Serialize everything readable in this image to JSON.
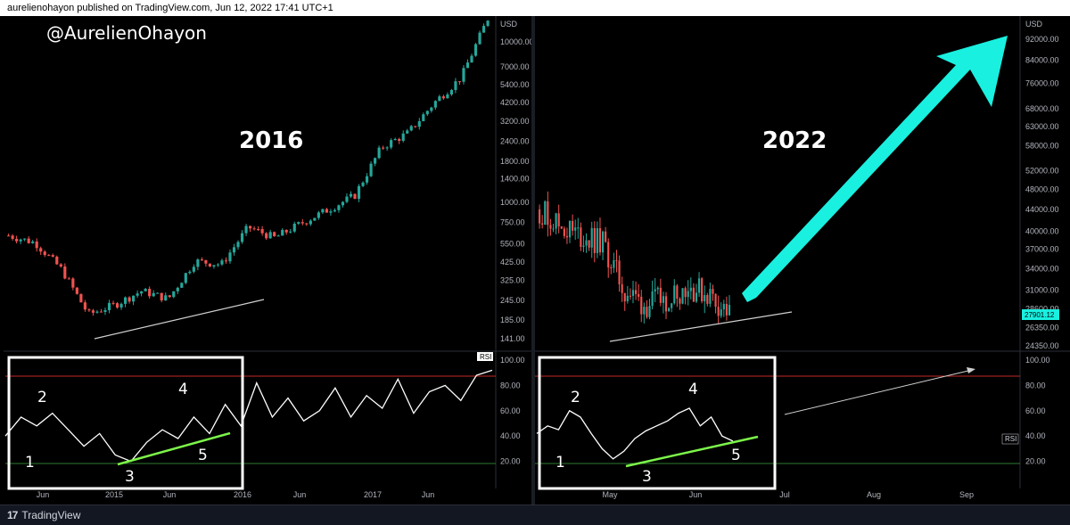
{
  "header": {
    "published_text": "aurelienohayon published on TradingView.com, Jun 12, 2022 17:41 UTC+1"
  },
  "footer": {
    "brand": "TradingView"
  },
  "annotations": {
    "handle": "@AurelienOhayon",
    "left_year": "2016",
    "right_year": "2022",
    "wave_labels": [
      "1",
      "2",
      "3",
      "4",
      "5"
    ]
  },
  "colors": {
    "up_candle": "#26a69a",
    "down_candle": "#ef5350",
    "rsi_line": "#ffffff",
    "overbought_line": "#d32f2f",
    "oversold_line": "#2e7d32",
    "trendline_price": "#d0d0d0",
    "trendline_rsi": "#7cf54a",
    "arrow": "#19f0e0",
    "box": "#ffffff",
    "price_tag": "#19f0e0"
  },
  "chart_data": [
    {
      "type": "candlestick",
      "title": "2016",
      "ylabel": "USD",
      "scale": "log",
      "price_ticks": [
        141,
        185,
        245,
        325,
        425,
        550,
        750,
        1000,
        1400,
        1800,
        2400,
        3200,
        4200,
        5400,
        7000,
        10000
      ],
      "price_tick_labels": [
        "141.00",
        "185.00",
        "245.00",
        "325.00",
        "425.00",
        "550.00",
        "750.00",
        "1000.00",
        "1400.00",
        "1800.00",
        "2400.00",
        "3200.00",
        "4200.00",
        "5400.00",
        "7000.00",
        "10000.00"
      ],
      "time_labels": [
        "Jun",
        "2015",
        "Jun",
        "2016",
        "Jun",
        "2017",
        "Jun"
      ],
      "close_path": {
        "periods": [
          "2014-05",
          "2014-08",
          "2014-11",
          "2015-01",
          "2015-04",
          "2015-07",
          "2015-10",
          "2015-12",
          "2016-03",
          "2016-06",
          "2016-08",
          "2016-11",
          "2017-01",
          "2017-03",
          "2017-05",
          "2017-07",
          "2017-09",
          "2017-10",
          "2017-12"
        ],
        "close": [
          620,
          560,
          380,
          200,
          230,
          280,
          250,
          430,
          410,
          700,
          600,
          740,
          900,
          1100,
          2200,
          2700,
          4200,
          6000,
          14000
        ]
      },
      "rsi": {
        "ylim": [
          0,
          100
        ],
        "levels": [
          20,
          80
        ],
        "level_labels": [
          "20.00",
          "40.00",
          "60.00",
          "80.00",
          "100.00"
        ],
        "values": [
          40,
          55,
          48,
          58,
          45,
          32,
          42,
          25,
          20,
          35,
          45,
          38,
          55,
          42,
          65,
          48,
          82,
          55,
          70,
          52,
          60,
          78,
          55,
          72,
          62,
          85,
          58,
          75,
          80,
          68,
          88,
          92
        ]
      }
    },
    {
      "type": "candlestick",
      "title": "2022",
      "ylabel": "USD",
      "scale": "log",
      "price_ticks": [
        24350,
        26350,
        28600,
        31000,
        34000,
        37000,
        40000,
        44000,
        48000,
        52000,
        58000,
        63000,
        68000,
        76000,
        84000,
        92000
      ],
      "price_tick_labels": [
        "24350.00",
        "26350.00",
        "28600.00",
        "31000.00",
        "34000.00",
        "37000.00",
        "40000.00",
        "44000.00",
        "48000.00",
        "52000.00",
        "58000.00",
        "63000.00",
        "68000.00",
        "76000.00",
        "84000.00",
        "92000.00"
      ],
      "last_price_label": "27901.12",
      "time_labels": [
        "May",
        "Jun",
        "Jul",
        "Aug",
        "Sep"
      ],
      "close_path": {
        "periods": [
          "2022-04-01",
          "2022-04-10",
          "2022-04-20",
          "2022-05-01",
          "2022-05-09",
          "2022-05-12",
          "2022-05-20",
          "2022-05-31",
          "2022-06-05",
          "2022-06-12"
        ],
        "close": [
          44000,
          41000,
          39000,
          38000,
          31000,
          29000,
          30000,
          31500,
          30500,
          27901
        ]
      },
      "rsi": {
        "ylim": [
          0,
          100
        ],
        "levels": [
          20,
          80
        ],
        "level_labels": [
          "20.00",
          "40.00",
          "60.00",
          "80.00",
          "100.00"
        ],
        "badge": "RSI",
        "values": [
          42,
          48,
          45,
          60,
          55,
          42,
          30,
          22,
          28,
          38,
          44,
          48,
          52,
          58,
          62,
          48,
          55,
          40,
          36
        ]
      }
    }
  ]
}
